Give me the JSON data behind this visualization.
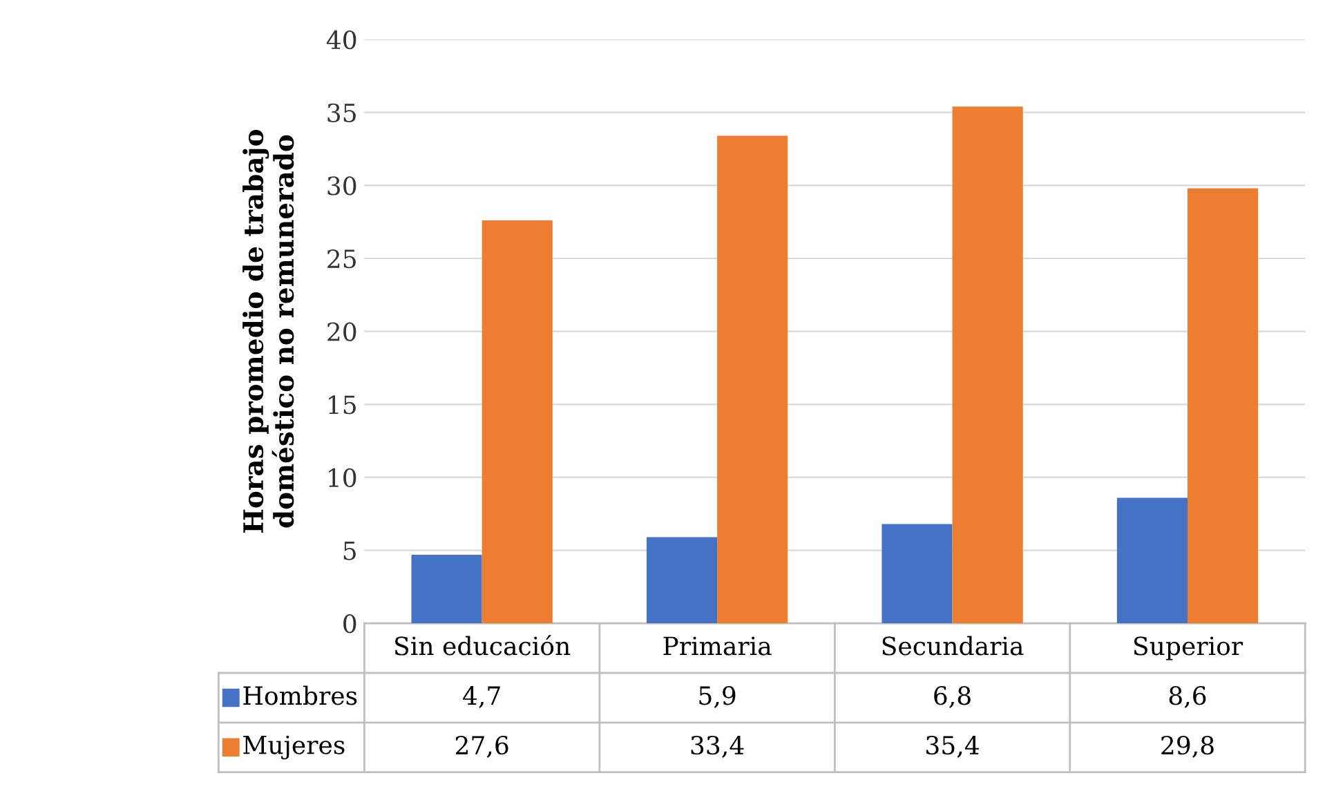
{
  "chart_data": {
    "type": "bar",
    "ylabel": "Horas promedio de trabajo\ndoméstico no remunerado",
    "categories": [
      "Sin educación",
      "Primaria",
      "Secundaria",
      "Superior"
    ],
    "series": [
      {
        "name": "Hombres",
        "color": "#4472c4",
        "values": [
          4.7,
          5.9,
          6.8,
          8.6
        ],
        "value_labels": [
          "4,7",
          "5,9",
          "6,8",
          "8,6"
        ]
      },
      {
        "name": "Mujeres",
        "color": "#ed7d31",
        "values": [
          27.6,
          33.4,
          35.4,
          29.8
        ],
        "value_labels": [
          "27,6",
          "33,4",
          "35,4",
          "29,8"
        ]
      }
    ],
    "ylim": [
      0,
      40
    ],
    "yticks": [
      0,
      5,
      10,
      15,
      20,
      25,
      30,
      35,
      40
    ],
    "grid": "y",
    "legend": "bottom"
  }
}
